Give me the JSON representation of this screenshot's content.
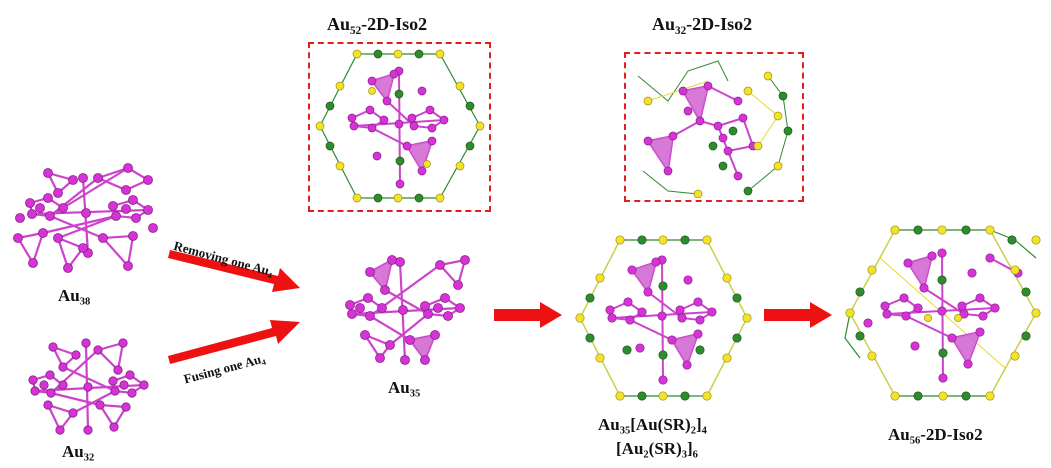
{
  "labels": {
    "au38": {
      "base": "Au",
      "sub": "38"
    },
    "au32": {
      "base": "Au",
      "sub": "32"
    },
    "au35": {
      "base": "Au",
      "sub": "35"
    },
    "au52_top": {
      "base": "Au",
      "sub": "52",
      "suffix": "-2D-Iso2"
    },
    "au32_top": {
      "base": "Au",
      "sub": "32",
      "suffix": "-2D-Iso2"
    },
    "au56": {
      "base": "Au",
      "sub": "56",
      "suffix": "-2D-Iso2"
    },
    "complex_line1": {
      "a": "Au",
      "a_sub": "35",
      "b": "[Au(SR)",
      "b_sub": "2",
      "c": "]",
      "c_sub": "4"
    },
    "complex_line2": {
      "a": "[Au",
      "a_sub": "2",
      "b": "(SR)",
      "b_sub": "3",
      "c": "]",
      "c_sub": "6"
    }
  },
  "arrows": {
    "removing": {
      "text": "Removing one Au",
      "sub": "4"
    },
    "fusing": {
      "text": "Fusing one Au",
      "sub": "4"
    }
  },
  "colors": {
    "gold_atom": "#d633d6",
    "gold_bond": "#cc44cc",
    "sulfur_atom": "#f2e22a",
    "green_atom": "#2e8b2e",
    "arrow": "#ee1111",
    "dash_box": "#e02020"
  }
}
